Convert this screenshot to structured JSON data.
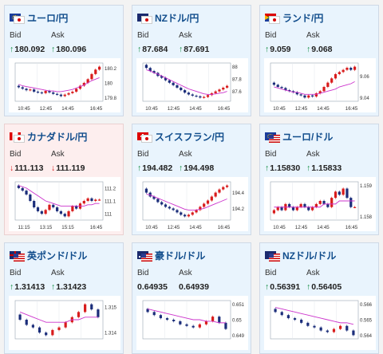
{
  "labels": {
    "bid": "Bid",
    "ask": "Ask"
  },
  "colors": {
    "up": "#0b8a3c",
    "down": "#d81c1c",
    "title": "#114d8c",
    "ma": "#cc33cc",
    "axis_ma": "#3aa0d8"
  },
  "cards": [
    {
      "pair": "ユーロ/円",
      "flag": "eu-jp",
      "trend": "up",
      "bid": "180.092",
      "ask": "180.096",
      "x_ticks": [
        "10:45",
        "12:45",
        "14:45",
        "16:45"
      ],
      "y_ticks": [
        "180.2",
        "180",
        "179.8"
      ],
      "closes": [
        179.94,
        179.92,
        179.9,
        179.91,
        179.88,
        179.87,
        179.86,
        179.89,
        179.87,
        179.85,
        179.84,
        179.82,
        179.84,
        179.86,
        179.88,
        179.92,
        179.96,
        180.0,
        180.05,
        180.12,
        180.18,
        180.22
      ],
      "ma": [
        179.98,
        179.96,
        179.95,
        179.94,
        179.93,
        179.92,
        179.91,
        179.9,
        179.89,
        179.89,
        179.88,
        179.88,
        179.89,
        179.9,
        179.91,
        179.93,
        179.95,
        179.97,
        180.0,
        180.03,
        180.05,
        180.07
      ]
    },
    {
      "pair": "NZドル/円",
      "flag": "nz-jp",
      "trend": "up",
      "bid": "87.684",
      "ask": "87.691",
      "x_ticks": [
        "10:45",
        "12:45",
        "14:45",
        "16:45"
      ],
      "y_ticks": [
        "88",
        "87.8",
        "87.6"
      ],
      "closes": [
        87.98,
        87.93,
        87.9,
        87.85,
        87.82,
        87.78,
        87.74,
        87.7,
        87.66,
        87.62,
        87.58,
        87.55,
        87.53,
        87.52,
        87.5,
        87.51,
        87.54,
        87.57,
        87.6,
        87.63,
        87.66,
        87.69
      ],
      "ma": [
        87.95,
        87.93,
        87.9,
        87.88,
        87.85,
        87.82,
        87.79,
        87.76,
        87.73,
        87.7,
        87.67,
        87.64,
        87.62,
        87.6,
        87.58,
        87.56,
        87.55,
        87.55,
        87.56,
        87.57,
        87.58,
        87.6
      ]
    },
    {
      "pair": "ランド/円",
      "flag": "za-jp",
      "trend": "up",
      "bid": "9.059",
      "ask": "9.068",
      "x_ticks": [
        "10:45",
        "12:45",
        "14:45",
        "16:45"
      ],
      "y_ticks": [
        "9.06",
        "9.04"
      ],
      "closes": [
        9.052,
        9.05,
        9.049,
        9.047,
        9.046,
        9.045,
        9.043,
        9.042,
        9.04,
        9.042,
        9.041,
        9.044,
        9.046,
        9.05,
        9.054,
        9.058,
        9.062,
        9.064,
        9.066,
        9.068,
        9.066,
        9.069
      ],
      "ma": [
        9.05,
        9.049,
        9.048,
        9.047,
        9.046,
        9.045,
        9.045,
        9.044,
        9.043,
        9.043,
        9.043,
        9.043,
        9.044,
        9.045,
        9.046,
        9.047,
        9.048,
        9.05,
        9.051,
        9.052,
        9.053,
        9.055
      ]
    },
    {
      "pair": "カナダドル/円",
      "flag": "ca-jp",
      "trend": "down",
      "bid": "111.113",
      "ask": "111.119",
      "x_ticks": [
        "11:15",
        "13:15",
        "15:15",
        "16:45"
      ],
      "y_ticks": [
        "111.2",
        "111.1",
        "111"
      ],
      "closes": [
        111.2,
        111.18,
        111.15,
        111.1,
        111.05,
        111.02,
        111.0,
        111.03,
        111.07,
        111.05,
        111.02,
        111.0,
        110.98,
        111.02,
        111.06,
        111.04,
        111.08,
        111.1,
        111.12,
        111.1,
        111.11,
        111.11
      ],
      "ma": [
        111.22,
        111.21,
        111.2,
        111.18,
        111.16,
        111.14,
        111.12,
        111.1,
        111.09,
        111.08,
        111.07,
        111.06,
        111.06,
        111.06,
        111.06,
        111.06,
        111.06,
        111.06,
        111.07,
        111.07,
        111.08,
        111.08
      ]
    },
    {
      "pair": "スイスフラン/円",
      "flag": "ch-jp",
      "trend": "up",
      "bid": "194.482",
      "ask": "194.498",
      "x_ticks": [
        "10:45",
        "12:45",
        "14:45",
        "16:45"
      ],
      "y_ticks": [
        "194.4",
        "194.2"
      ],
      "closes": [
        194.4,
        194.35,
        194.32,
        194.28,
        194.25,
        194.22,
        194.2,
        194.18,
        194.15,
        194.12,
        194.1,
        194.12,
        194.15,
        194.18,
        194.22,
        194.26,
        194.3,
        194.35,
        194.4,
        194.44,
        194.47,
        194.49
      ],
      "ma": [
        194.38,
        194.37,
        194.35,
        194.33,
        194.31,
        194.29,
        194.27,
        194.25,
        194.23,
        194.21,
        194.19,
        194.18,
        194.18,
        194.18,
        194.19,
        194.2,
        194.22,
        194.24,
        194.26,
        194.28,
        194.3,
        194.32
      ]
    },
    {
      "pair": "ユーロ/ドル",
      "flag": "eu-us",
      "trend": "up",
      "bid": "1.15830",
      "ask": "1.15833",
      "x_ticks": [
        "10:45",
        "12:45",
        "14:45",
        "16:45"
      ],
      "y_ticks": [
        "1.159",
        "1.158"
      ],
      "closes": [
        1.1582,
        1.1583,
        1.1582,
        1.1584,
        1.1583,
        1.1582,
        1.1583,
        1.1584,
        1.1583,
        1.1582,
        1.1583,
        1.1584,
        1.1585,
        1.1584,
        1.1583,
        1.1586,
        1.1588,
        1.1587,
        1.1589,
        1.1586,
        1.1583,
        1.1583
      ],
      "ma": [
        1.1583,
        1.1583,
        1.1583,
        1.1583,
        1.1583,
        1.1583,
        1.1583,
        1.1583,
        1.1583,
        1.1583,
        1.1583,
        1.1583,
        1.1583,
        1.1584,
        1.1584,
        1.1584,
        1.1584,
        1.1585,
        1.1585,
        1.1585,
        1.1585,
        1.1585
      ]
    },
    {
      "pair": "英ポンド/ドル",
      "flag": "gb-us",
      "trend": "up",
      "bid": "1.31413",
      "ask": "1.31423",
      "x_ticks": [],
      "y_ticks": [
        "1.315",
        "1.314"
      ],
      "closes": [
        1.3145,
        1.3143,
        1.3142,
        1.314,
        1.3139,
        1.3141,
        1.3142,
        1.3144,
        1.3146,
        1.3148,
        1.3151,
        1.3149,
        1.3146
      ],
      "ma": [
        1.3148,
        1.3147,
        1.3146,
        1.3145,
        1.3144,
        1.3144,
        1.3144,
        1.3144,
        1.3145,
        1.3145,
        1.3146,
        1.3146,
        1.3146
      ]
    },
    {
      "pair": "豪ドル/ドル",
      "flag": "au-us",
      "trend": "none",
      "bid": "0.64935",
      "ask": "0.64939",
      "x_ticks": [],
      "y_ticks": [
        "0.651",
        "0.65",
        "0.649"
      ],
      "closes": [
        0.6505,
        0.6503,
        0.6501,
        0.65,
        0.6499,
        0.6497,
        0.6496,
        0.6495,
        0.6497,
        0.6499,
        0.6502,
        0.6498,
        0.6494
      ],
      "ma": [
        0.6507,
        0.6506,
        0.6505,
        0.6504,
        0.6503,
        0.6502,
        0.6501,
        0.65,
        0.65,
        0.6499,
        0.6499,
        0.6498,
        0.6498
      ]
    },
    {
      "pair": "NZドル/ドル",
      "flag": "nz-us",
      "trend": "up",
      "bid": "0.56391",
      "ask": "0.56405",
      "x_ticks": [],
      "y_ticks": [
        "0.566",
        "0.565",
        "0.564"
      ],
      "closes": [
        0.5655,
        0.5653,
        0.5651,
        0.565,
        0.5648,
        0.5646,
        0.5645,
        0.5643,
        0.5642,
        0.5644,
        0.5646,
        0.5643,
        0.564
      ],
      "ma": [
        0.5658,
        0.5657,
        0.5656,
        0.5655,
        0.5654,
        0.5653,
        0.5652,
        0.5651,
        0.565,
        0.5649,
        0.5648,
        0.5648,
        0.5647
      ]
    }
  ]
}
